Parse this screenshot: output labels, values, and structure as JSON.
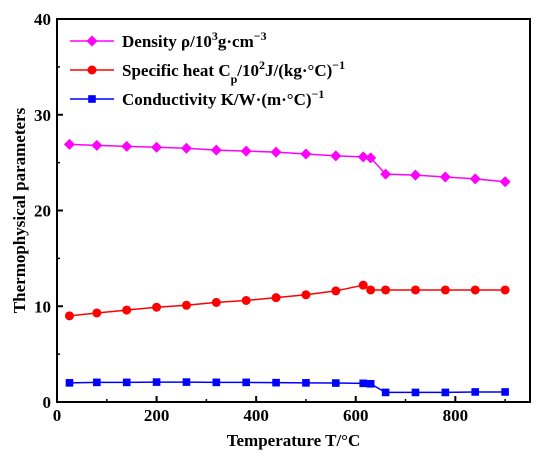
{
  "chart_data": {
    "type": "line",
    "title": "",
    "xlabel": "Temperature T/°C",
    "ylabel": "Thermophysical parameters",
    "xlim": [
      0,
      950
    ],
    "ylim": [
      0,
      40
    ],
    "xticks": [
      0,
      200,
      400,
      600,
      800
    ],
    "yticks": [
      0,
      10,
      20,
      30,
      40
    ],
    "tick_labels_x": [
      "0",
      "200",
      "400",
      "600",
      "800"
    ],
    "tick_labels_y": [
      "0",
      "10",
      "20",
      "30",
      "40"
    ],
    "legend_position": "top-left",
    "grid": false,
    "series": [
      {
        "name": "Density ρ/10³g·cm⁻³",
        "legend_main": "Density ρ/10",
        "legend_sup": "3",
        "legend_rest": "g·cm",
        "legend_sup2": "−3",
        "color": "#ff00ff",
        "marker": "diamond",
        "x": [
          25,
          80,
          140,
          200,
          260,
          320,
          380,
          440,
          500,
          560,
          615,
          630,
          660,
          720,
          780,
          840,
          900
        ],
        "y": [
          26.9,
          26.8,
          26.7,
          26.6,
          26.5,
          26.3,
          26.2,
          26.1,
          25.9,
          25.7,
          25.6,
          25.5,
          23.8,
          23.7,
          23.5,
          23.3,
          23.0
        ]
      },
      {
        "name": "Specific heat Cp/10²J/(kg·°C)⁻¹",
        "legend_main": "Specific heat C",
        "legend_sub": "p",
        "legend_mid": "/10",
        "legend_sup": "2",
        "legend_rest": "J/(kg·°C)",
        "legend_sup2": "−1",
        "color": "#ff0000",
        "marker": "circle",
        "x": [
          25,
          80,
          140,
          200,
          260,
          320,
          380,
          440,
          500,
          560,
          615,
          630,
          660,
          720,
          780,
          840,
          900
        ],
        "y": [
          9.0,
          9.3,
          9.6,
          9.9,
          10.1,
          10.4,
          10.6,
          10.9,
          11.2,
          11.6,
          12.2,
          11.7,
          11.7,
          11.7,
          11.7,
          11.7,
          11.7
        ]
      },
      {
        "name": "Conductivity K/W·(m·°C)⁻¹",
        "legend_main": "Conductivity K/W·(m·°C)",
        "legend_sup2": "−1",
        "color": "#0000ff",
        "marker": "square",
        "x": [
          25,
          80,
          140,
          200,
          260,
          320,
          380,
          440,
          500,
          560,
          615,
          630,
          660,
          720,
          780,
          840,
          900
        ],
        "y": [
          2.0,
          2.05,
          2.05,
          2.08,
          2.08,
          2.05,
          2.05,
          2.02,
          2.0,
          1.98,
          1.95,
          1.9,
          1.0,
          1.0,
          1.0,
          1.05,
          1.05
        ]
      }
    ]
  }
}
